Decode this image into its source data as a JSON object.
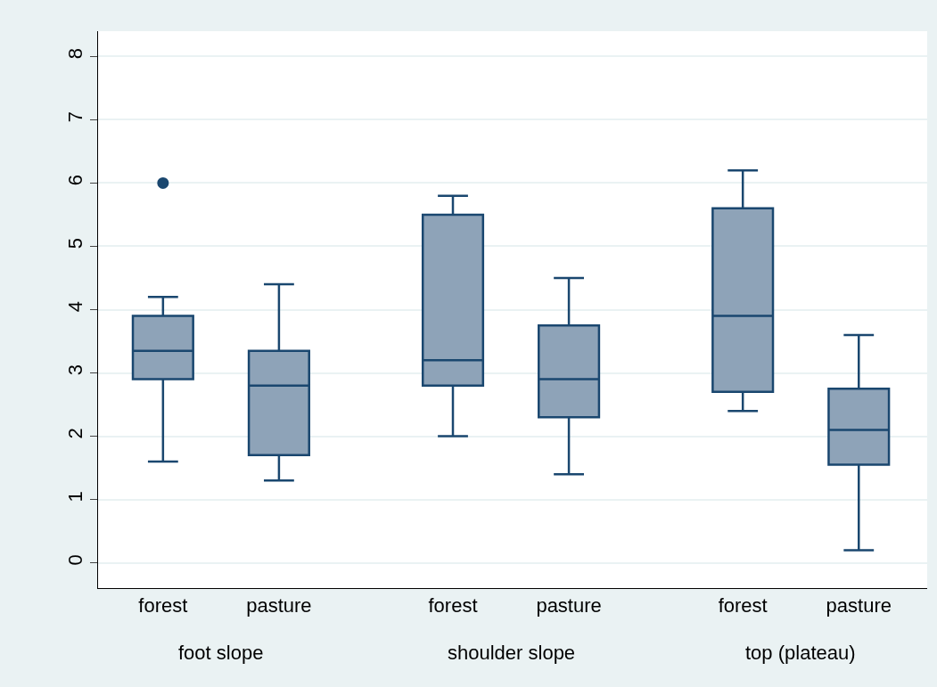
{
  "chart_data": {
    "type": "box",
    "categories": [
      "forest",
      "pasture",
      "forest",
      "pasture",
      "forest",
      "pasture"
    ],
    "annotations": [
      "foot slope",
      "shoulder slope",
      "top (plateau)"
    ],
    "color": "#8ea3b8",
    "boxes": [
      {
        "low": 1.6,
        "q1": 2.9,
        "median": 3.35,
        "q3": 3.9,
        "high": 4.2,
        "outliers": [
          6.0
        ]
      },
      {
        "low": 1.3,
        "q1": 1.7,
        "median": 2.8,
        "q3": 3.35,
        "high": 4.4
      },
      {
        "low": 2.0,
        "q1": 2.8,
        "median": 3.2,
        "q3": 5.5,
        "high": 5.8
      },
      {
        "low": 1.4,
        "q1": 2.3,
        "median": 2.9,
        "q3": 3.75,
        "high": 4.5
      },
      {
        "low": 2.4,
        "q1": 2.7,
        "median": 3.9,
        "q3": 5.6,
        "high": 6.2
      },
      {
        "low": 0.2,
        "q1": 1.55,
        "median": 2.1,
        "q3": 2.75,
        "high": 3.6
      }
    ],
    "ylim": [
      -0.4,
      8.4
    ],
    "yticks": [
      0,
      1,
      2,
      3,
      4,
      5,
      6,
      7,
      8
    ],
    "grid": "y"
  }
}
